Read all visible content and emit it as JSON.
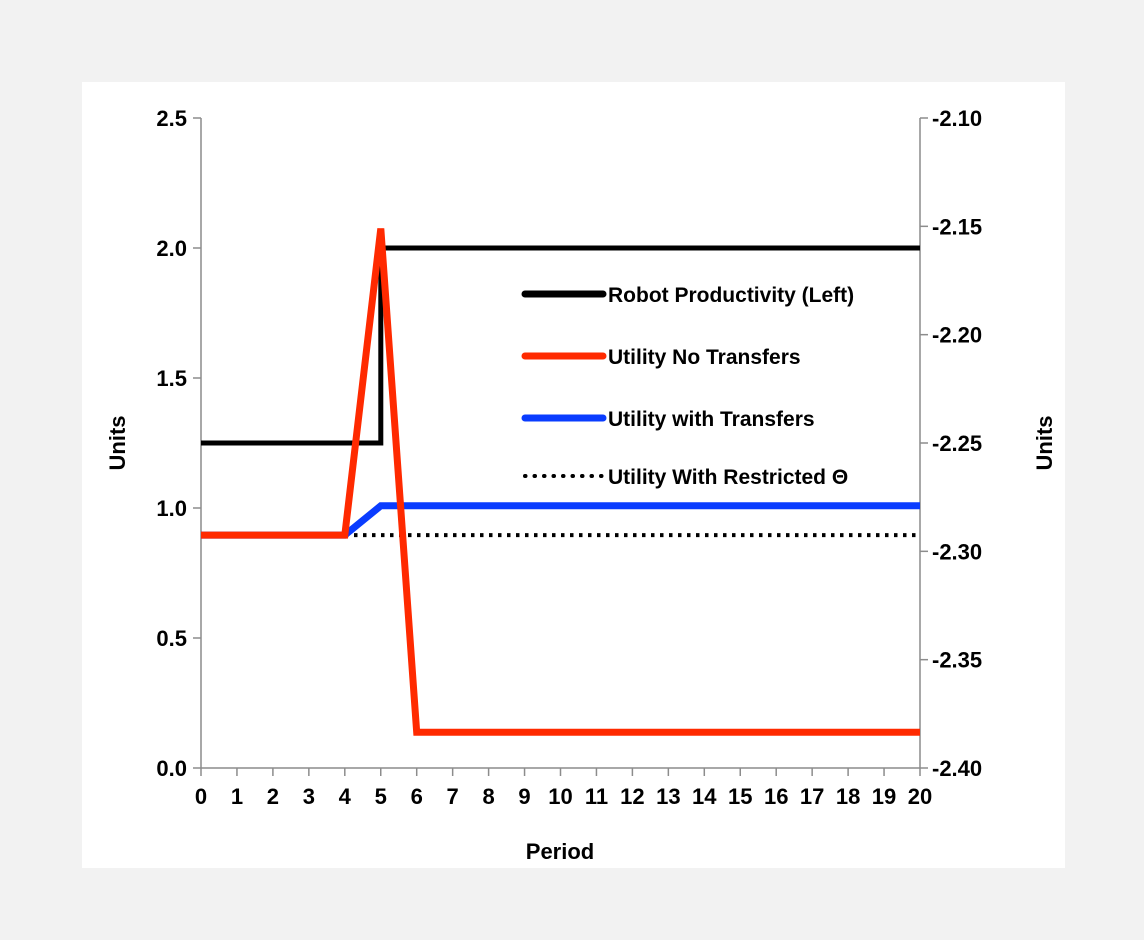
{
  "chart_data": {
    "type": "line",
    "title": "",
    "xlabel": "Period",
    "ylabel_left": "Units",
    "ylabel_right": "Units",
    "x": [
      0,
      1,
      2,
      3,
      4,
      5,
      6,
      7,
      8,
      9,
      10,
      11,
      12,
      13,
      14,
      15,
      16,
      17,
      18,
      19,
      20
    ],
    "xlim": [
      0,
      20
    ],
    "ylim_left": [
      0.0,
      2.5
    ],
    "ylim_right": [
      -2.4,
      -2.1
    ],
    "yticks_left": [
      "0.0",
      "0.5",
      "1.0",
      "1.5",
      "2.0",
      "2.5"
    ],
    "yticks_right": [
      "-2.40",
      "-2.35",
      "-2.30",
      "-2.25",
      "-2.20",
      "-2.15",
      "-2.10"
    ],
    "xticks": [
      "0",
      "1",
      "2",
      "3",
      "4",
      "5",
      "6",
      "7",
      "8",
      "9",
      "10",
      "11",
      "12",
      "13",
      "14",
      "15",
      "16",
      "17",
      "18",
      "19",
      "20"
    ],
    "grid": false,
    "legend_position": "right",
    "series": [
      {
        "name": "Robot Productivity (Left)",
        "axis": "left",
        "color": "#000000",
        "style": "solid-step",
        "points": [
          [
            0,
            1.25
          ],
          [
            5,
            1.25
          ],
          [
            5,
            2.0
          ],
          [
            20,
            2.0
          ]
        ]
      },
      {
        "name": "Utility No Transfers",
        "axis": "right",
        "color": "#ff2a00",
        "style": "solid",
        "points": [
          [
            0,
            -2.2925
          ],
          [
            4,
            -2.2925
          ],
          [
            5,
            -2.151
          ],
          [
            6,
            -2.3835
          ],
          [
            20,
            -2.3835
          ]
        ]
      },
      {
        "name": "Utility with Transfers",
        "axis": "right",
        "color": "#0a3cff",
        "style": "solid",
        "points": [
          [
            0,
            -2.2925
          ],
          [
            4,
            -2.2925
          ],
          [
            5,
            -2.279
          ],
          [
            20,
            -2.279
          ]
        ]
      },
      {
        "name": "Utility With Restricted Θ",
        "axis": "right",
        "color": "#000000",
        "style": "dotted",
        "points": [
          [
            0,
            -2.2925
          ],
          [
            20,
            -2.2925
          ]
        ]
      }
    ]
  }
}
